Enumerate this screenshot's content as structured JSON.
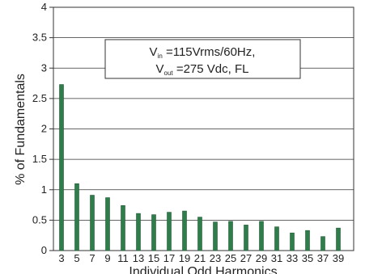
{
  "chart_data": {
    "type": "bar",
    "xlabel": "Individual Odd Harmonics",
    "ylabel": "% of Fundamentals",
    "ylim": [
      0,
      4
    ],
    "yticks": [
      "0",
      "0.5",
      "1",
      "1.5",
      "2",
      "2.5",
      "3",
      "3.5",
      "4"
    ],
    "grid": "horizontal",
    "categories": [
      "3",
      "5",
      "7",
      "9",
      "11",
      "13",
      "15",
      "17",
      "19",
      "21",
      "23",
      "25",
      "27",
      "29",
      "31",
      "33",
      "35",
      "37",
      "39"
    ],
    "values": [
      2.73,
      1.1,
      0.91,
      0.87,
      0.74,
      0.61,
      0.59,
      0.63,
      0.65,
      0.55,
      0.47,
      0.48,
      0.42,
      0.48,
      0.39,
      0.29,
      0.33,
      0.23,
      0.37
    ],
    "bar_color": "#2e7d4a",
    "annotation": {
      "line1_prefix": "V",
      "line1_sub": "in",
      "line1_rest": " =115Vrms/60Hz,",
      "line2_prefix": "V",
      "line2_sub": "out",
      "line2_rest": " =275 Vdc, FL"
    }
  }
}
